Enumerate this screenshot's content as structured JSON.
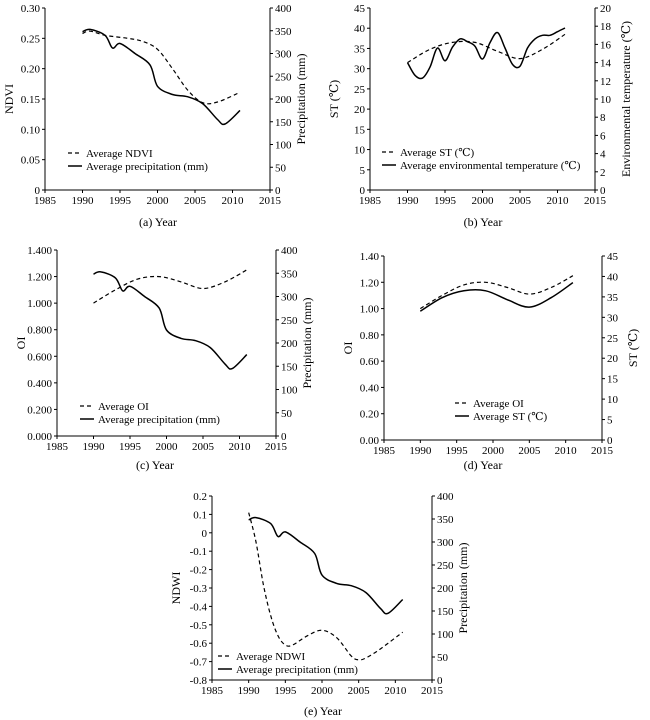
{
  "chart_data": [
    {
      "type": "line",
      "caption": "(a) Year",
      "xlabel": "",
      "xlim": [
        1985,
        2015
      ],
      "xticks": [
        "1985",
        "1990",
        "1995",
        "2000",
        "2005",
        "2010",
        "2015"
      ],
      "ylabel": "NDVI",
      "ylim": [
        0,
        0.3
      ],
      "yticks": [
        "0",
        "0.05",
        "0.10",
        "0.15",
        "0.20",
        "0.25",
        "0.30"
      ],
      "y2label": "Precipitation (mm)",
      "y2lim": [
        0,
        400
      ],
      "y2ticks": [
        "0",
        "50",
        "100",
        "150",
        "200",
        "250",
        "300",
        "350",
        "400"
      ],
      "legend_position": "bottom-left",
      "series": [
        {
          "name": "Average NDVI",
          "axis": "left",
          "style": "dashed",
          "x": [
            1990,
            1991,
            1993,
            1996,
            1998,
            2000,
            2002,
            2004,
            2006,
            2008,
            2011
          ],
          "y": [
            0.258,
            0.262,
            0.255,
            0.25,
            0.245,
            0.232,
            0.2,
            0.165,
            0.144,
            0.145,
            0.161
          ]
        },
        {
          "name": "Average precipitation (mm)",
          "axis": "right",
          "style": "solid",
          "x": [
            1990,
            1991,
            1993,
            1994,
            1995,
            1997,
            1999,
            2000,
            2002,
            2004,
            2006,
            2008,
            2009,
            2011
          ],
          "y": [
            348,
            353,
            340,
            312,
            322,
            300,
            275,
            228,
            210,
            205,
            190,
            155,
            145,
            175
          ]
        }
      ]
    },
    {
      "type": "line",
      "caption": "(b) Year",
      "xlabel": "",
      "xlim": [
        1985,
        2015
      ],
      "xticks": [
        "1985",
        "1990",
        "1995",
        "2000",
        "2005",
        "2010",
        "2015"
      ],
      "ylabel": "ST (℃)",
      "ylim": [
        0,
        45
      ],
      "yticks": [
        "0",
        "5",
        "10",
        "15",
        "20",
        "25",
        "30",
        "35",
        "40",
        "45"
      ],
      "y2label": "Environmental temperature (℃)",
      "y2lim": [
        0,
        20
      ],
      "y2ticks": [
        "0",
        "2",
        "4",
        "6",
        "8",
        "10",
        "12",
        "14",
        "16",
        "18",
        "20"
      ],
      "legend_position": "bottom-left",
      "series": [
        {
          "name": "Average ST (℃)",
          "axis": "left",
          "style": "dashed",
          "x": [
            1990,
            1993,
            1996,
            1999,
            2002,
            2005,
            2008,
            2011
          ],
          "y": [
            31.5,
            34.8,
            36.5,
            36.5,
            34.3,
            32.5,
            34.8,
            38.5
          ]
        },
        {
          "name": "Average environmental temperature (℃)",
          "axis": "right",
          "style": "solid",
          "x": [
            1990,
            1991,
            1992,
            1993,
            1994,
            1995,
            1996,
            1997,
            1998,
            1999,
            2000,
            2001,
            2002,
            2003,
            2004,
            2005,
            2006,
            2007,
            2008,
            2009,
            2010,
            2011
          ],
          "y": [
            14.0,
            12.6,
            12.3,
            13.5,
            15.6,
            14.2,
            15.7,
            16.6,
            16.3,
            15.8,
            14.4,
            16.2,
            17.3,
            15.6,
            13.8,
            13.6,
            15.6,
            16.6,
            17.0,
            17.0,
            17.4,
            17.8
          ]
        }
      ]
    },
    {
      "type": "line",
      "caption": "(c) Year",
      "xlabel": "",
      "xlim": [
        1985,
        2015
      ],
      "xticks": [
        "1985",
        "1990",
        "1995",
        "2000",
        "2005",
        "2010",
        "2015"
      ],
      "ylabel": "OI",
      "ylim": [
        0,
        1.4
      ],
      "yticks": [
        "0.000",
        "0.200",
        "0.400",
        "0.600",
        "0.800",
        "1.000",
        "1.200",
        "1.400"
      ],
      "y2label": "Precipitation (mm)",
      "y2lim": [
        0,
        400
      ],
      "y2ticks": [
        "0",
        "50",
        "100",
        "150",
        "200",
        "250",
        "300",
        "350",
        "400"
      ],
      "legend_position": "bottom-left",
      "series": [
        {
          "name": "Average OI",
          "axis": "left",
          "style": "dashed",
          "x": [
            1990,
            1993,
            1996,
            1999,
            2002,
            2005,
            2008,
            2011
          ],
          "y": [
            1.0,
            1.1,
            1.18,
            1.2,
            1.16,
            1.11,
            1.16,
            1.25
          ]
        },
        {
          "name": "Average precipitation (mm)",
          "axis": "right",
          "style": "solid",
          "x": [
            1990,
            1991,
            1993,
            1994,
            1995,
            1997,
            1999,
            2000,
            2002,
            2004,
            2006,
            2008,
            2009,
            2011
          ],
          "y": [
            348,
            353,
            340,
            312,
            322,
            300,
            275,
            228,
            210,
            205,
            190,
            155,
            145,
            175
          ]
        }
      ]
    },
    {
      "type": "line",
      "caption": "(d) Year",
      "xlabel": "",
      "xlim": [
        1985,
        2015
      ],
      "xticks": [
        "1985",
        "1990",
        "1995",
        "2000",
        "2005",
        "2010",
        "2015"
      ],
      "ylabel": "OI",
      "ylim": [
        0,
        1.4
      ],
      "yticks": [
        "0.00",
        "0.20",
        "0.40",
        "0.60",
        "0.80",
        "1.00",
        "1.20",
        "1.40"
      ],
      "y2label": "ST (℃)",
      "y2lim": [
        0,
        45
      ],
      "y2ticks": [
        "0",
        "5",
        "10",
        "15",
        "20",
        "25",
        "30",
        "35",
        "40",
        "45"
      ],
      "legend_position": "bottom-left",
      "series": [
        {
          "name": "Average OI",
          "axis": "left",
          "style": "dashed",
          "x": [
            1990,
            1993,
            1996,
            1999,
            2002,
            2005,
            2008,
            2011
          ],
          "y": [
            1.0,
            1.1,
            1.18,
            1.2,
            1.16,
            1.11,
            1.16,
            1.25
          ]
        },
        {
          "name": "Average ST (℃)",
          "axis": "right",
          "style": "solid",
          "x": [
            1990,
            1993,
            1996,
            1999,
            2002,
            2005,
            2008,
            2011
          ],
          "y": [
            31.5,
            34.8,
            36.5,
            36.5,
            34.3,
            32.5,
            34.8,
            38.5
          ]
        }
      ]
    },
    {
      "type": "line",
      "caption": "(e) Year",
      "xlabel": "",
      "xlim": [
        1985,
        2015
      ],
      "xticks": [
        "1985",
        "1990",
        "1995",
        "2000",
        "2005",
        "2010",
        "2015"
      ],
      "ylabel": "NDWI",
      "ylim": [
        -0.8,
        0.2
      ],
      "yticks": [
        "-0.8",
        "-0.7",
        "-0.6",
        "-0.5",
        "-0.4",
        "-0.3",
        "-0.2",
        "-0.1",
        "0",
        "0.1",
        "0.2"
      ],
      "y2label": "Precipitation (mm)",
      "y2lim": [
        0,
        400
      ],
      "y2ticks": [
        "0",
        "50",
        "100",
        "150",
        "200",
        "250",
        "300",
        "350",
        "400"
      ],
      "legend_position": "bottom-left",
      "series": [
        {
          "name": "Average NDWI",
          "axis": "left",
          "style": "dashed",
          "x": [
            1990,
            1991,
            1992,
            1993,
            1994,
            1995,
            1996,
            1998,
            2000,
            2002,
            2004,
            2005,
            2006,
            2008,
            2011
          ],
          "y": [
            0.11,
            -0.05,
            -0.28,
            -0.45,
            -0.56,
            -0.61,
            -0.61,
            -0.56,
            -0.53,
            -0.57,
            -0.67,
            -0.69,
            -0.68,
            -0.63,
            -0.54
          ]
        },
        {
          "name": "Average precipitation (mm)",
          "axis": "right",
          "style": "solid",
          "x": [
            1990,
            1991,
            1993,
            1994,
            1995,
            1997,
            1999,
            2000,
            2002,
            2004,
            2006,
            2008,
            2009,
            2011
          ],
          "y": [
            348,
            353,
            340,
            312,
            322,
            300,
            275,
            228,
            210,
            205,
            190,
            155,
            145,
            175
          ]
        }
      ]
    }
  ]
}
